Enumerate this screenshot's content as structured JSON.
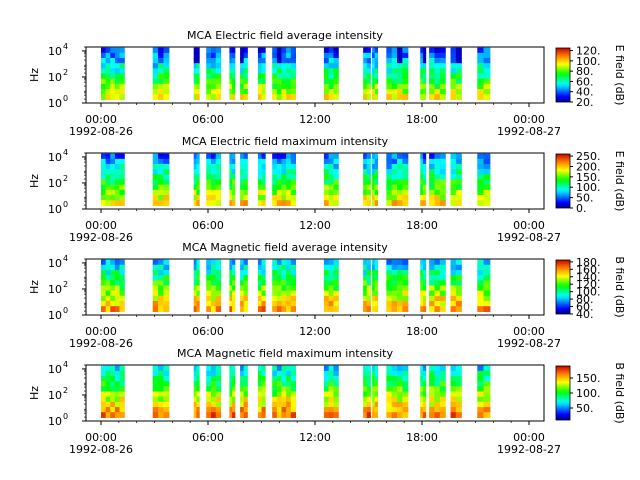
{
  "figure": {
    "background": "#ffffff"
  },
  "chart_data": [
    {
      "type": "heatmap",
      "title": "MCA  Electric field average intensity",
      "ylabel": "Hz",
      "colorbar_label": "E field (dB)",
      "colorbar_ticks": [
        "120.",
        "100.",
        "80.",
        "60.",
        "40.",
        "20."
      ],
      "colorbar_range": [
        20,
        125
      ],
      "mean_level_db": 62,
      "y_scale": "log",
      "y_tick_exponents": [
        0,
        2,
        4
      ],
      "y_range_hz": [
        1,
        20000
      ],
      "x_ticks": [
        "00:00",
        "06:00",
        "12:00",
        "18:00",
        "00:00"
      ],
      "date_labels": [
        "1992-08-26",
        "1992-08-27"
      ],
      "data_blocks_hours": [
        [
          0.0,
          1.3
        ],
        [
          2.9,
          3.8
        ],
        [
          5.2,
          5.5
        ],
        [
          5.9,
          6.7
        ],
        [
          7.2,
          7.5
        ],
        [
          7.8,
          8.2
        ],
        [
          8.8,
          9.2
        ],
        [
          9.6,
          10.9
        ],
        [
          12.5,
          13.3
        ],
        [
          14.7,
          15.1
        ],
        [
          15.2,
          15.5
        ],
        [
          16.0,
          17.2
        ],
        [
          17.9,
          18.2
        ],
        [
          18.4,
          19.3
        ],
        [
          19.6,
          20.2
        ],
        [
          21.1,
          21.8
        ]
      ]
    },
    {
      "type": "heatmap",
      "title": "MCA  Electric field maximum intensity",
      "ylabel": "Hz",
      "colorbar_label": "E field (dB)",
      "colorbar_ticks": [
        "250.",
        "200.",
        "150.",
        "100.",
        "50.",
        "0."
      ],
      "colorbar_range": [
        0,
        260
      ],
      "mean_level_db": 115,
      "y_scale": "log",
      "y_tick_exponents": [
        0,
        2,
        4
      ],
      "y_range_hz": [
        1,
        20000
      ],
      "x_ticks": [
        "00:00",
        "06:00",
        "12:00",
        "18:00",
        "00:00"
      ],
      "date_labels": [
        "1992-08-26",
        "1992-08-27"
      ],
      "data_blocks_hours": [
        [
          0.0,
          1.3
        ],
        [
          2.9,
          3.8
        ],
        [
          5.2,
          5.5
        ],
        [
          5.9,
          6.7
        ],
        [
          7.2,
          7.5
        ],
        [
          7.8,
          8.2
        ],
        [
          8.8,
          9.2
        ],
        [
          9.6,
          10.9
        ],
        [
          12.5,
          13.3
        ],
        [
          14.7,
          15.1
        ],
        [
          15.2,
          15.5
        ],
        [
          16.0,
          17.2
        ],
        [
          17.9,
          18.2
        ],
        [
          18.4,
          19.3
        ],
        [
          19.6,
          20.2
        ],
        [
          21.1,
          21.8
        ]
      ]
    },
    {
      "type": "heatmap",
      "title": "MCA  Magnetic field average intensity",
      "ylabel": "Hz",
      "colorbar_label": "B field (dB)",
      "colorbar_ticks": [
        "180.",
        "160.",
        "140.",
        "120.",
        "100.",
        "80.",
        "60.",
        "40."
      ],
      "colorbar_range": [
        40,
        185
      ],
      "mean_level_db": 115,
      "y_scale": "log",
      "y_tick_exponents": [
        0,
        2,
        4
      ],
      "y_range_hz": [
        1,
        20000
      ],
      "x_ticks": [
        "00:00",
        "06:00",
        "12:00",
        "18:00",
        "00:00"
      ],
      "date_labels": [
        "1992-08-26",
        "1992-08-27"
      ],
      "data_blocks_hours": [
        [
          0.0,
          1.3
        ],
        [
          2.9,
          3.8
        ],
        [
          5.2,
          5.5
        ],
        [
          5.9,
          6.7
        ],
        [
          7.2,
          7.5
        ],
        [
          7.8,
          8.2
        ],
        [
          8.8,
          9.2
        ],
        [
          9.6,
          10.9
        ],
        [
          12.5,
          13.3
        ],
        [
          14.7,
          15.1
        ],
        [
          15.2,
          15.5
        ],
        [
          16.0,
          17.2
        ],
        [
          17.9,
          18.2
        ],
        [
          18.4,
          19.3
        ],
        [
          19.6,
          20.2
        ],
        [
          21.1,
          21.8
        ]
      ]
    },
    {
      "type": "heatmap",
      "title": "MCA  Magnetic field maximum intensity",
      "ylabel": "Hz",
      "colorbar_label": "B field (dB)",
      "colorbar_ticks": [
        "150.",
        "100.",
        "50."
      ],
      "colorbar_range": [
        10,
        190
      ],
      "mean_level_db": 110,
      "y_scale": "log",
      "y_tick_exponents": [
        0,
        2,
        4
      ],
      "y_range_hz": [
        1,
        20000
      ],
      "x_ticks": [
        "00:00",
        "06:00",
        "12:00",
        "18:00",
        "00:00"
      ],
      "date_labels": [
        "1992-08-26",
        "1992-08-27"
      ],
      "data_blocks_hours": [
        [
          0.0,
          1.3
        ],
        [
          2.9,
          3.8
        ],
        [
          5.2,
          5.5
        ],
        [
          5.9,
          6.7
        ],
        [
          7.2,
          7.5
        ],
        [
          7.8,
          8.2
        ],
        [
          8.8,
          9.2
        ],
        [
          9.6,
          10.9
        ],
        [
          12.5,
          13.3
        ],
        [
          14.7,
          15.1
        ],
        [
          15.2,
          15.5
        ],
        [
          16.0,
          17.2
        ],
        [
          17.9,
          18.2
        ],
        [
          18.4,
          19.3
        ],
        [
          19.6,
          20.2
        ],
        [
          21.1,
          21.8
        ]
      ]
    }
  ]
}
